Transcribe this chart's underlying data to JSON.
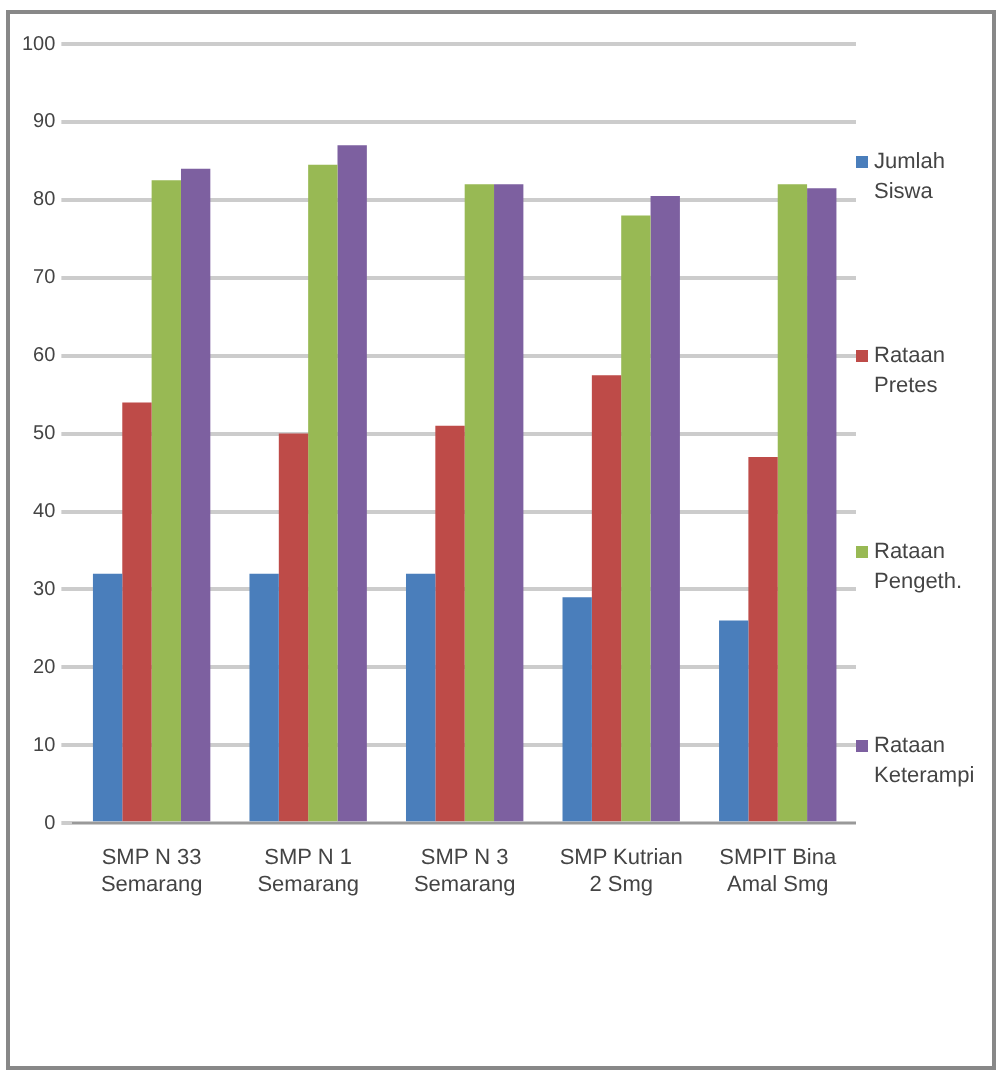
{
  "chart_data": {
    "type": "bar",
    "categories": [
      "SMP N 33\nSemarang",
      "SMP N 1\nSemarang",
      "SMP N 3\nSemarang",
      "SMP Kutrian\n2 Smg",
      "SMPIT Bina\nAmal Smg"
    ],
    "series": [
      {
        "name": "Jumlah Siswa",
        "color": "#4a7ebb",
        "values": [
          32,
          32,
          32,
          29,
          26
        ]
      },
      {
        "name": "Rataan Pretes",
        "color": "#be4b48",
        "values": [
          54,
          50,
          51,
          57.5,
          47
        ]
      },
      {
        "name": "Rataan Pengeth.",
        "color": "#98b954",
        "values": [
          82.5,
          84.5,
          82,
          78,
          82
        ]
      },
      {
        "name": "Rataan Keterampi",
        "color": "#7d60a0",
        "values": [
          84,
          87,
          82,
          80.5,
          81.5
        ]
      }
    ],
    "ylim": [
      0,
      100
    ],
    "yticks": [
      0,
      10,
      20,
      30,
      40,
      50,
      60,
      70,
      80,
      90,
      100
    ],
    "grid": "y",
    "legend": "right"
  }
}
